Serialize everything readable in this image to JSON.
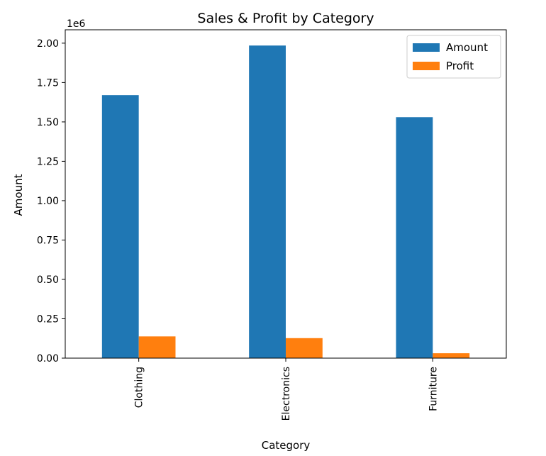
{
  "chart_data": {
    "type": "bar",
    "title": "Sales & Profit by Category",
    "xlabel": "Category",
    "ylabel": "Amount",
    "y_offset_label": "1e6",
    "categories": [
      "Clothing",
      "Electronics",
      "Furniture"
    ],
    "series": [
      {
        "name": "Amount",
        "color": "#1f77b4",
        "values": [
          1670000,
          1985000,
          1530000
        ]
      },
      {
        "name": "Profit",
        "color": "#ff7f0e",
        "values": [
          138000,
          127000,
          31000
        ]
      }
    ],
    "ylim": [
      0,
      2085000
    ],
    "yticks": [
      0,
      250000,
      500000,
      750000,
      1000000,
      1250000,
      1500000,
      1750000,
      2000000
    ],
    "ytick_labels": [
      "0.00",
      "0.25",
      "0.50",
      "0.75",
      "1.00",
      "1.25",
      "1.50",
      "1.75",
      "2.00"
    ],
    "grid": false,
    "legend_position": "top-right"
  }
}
